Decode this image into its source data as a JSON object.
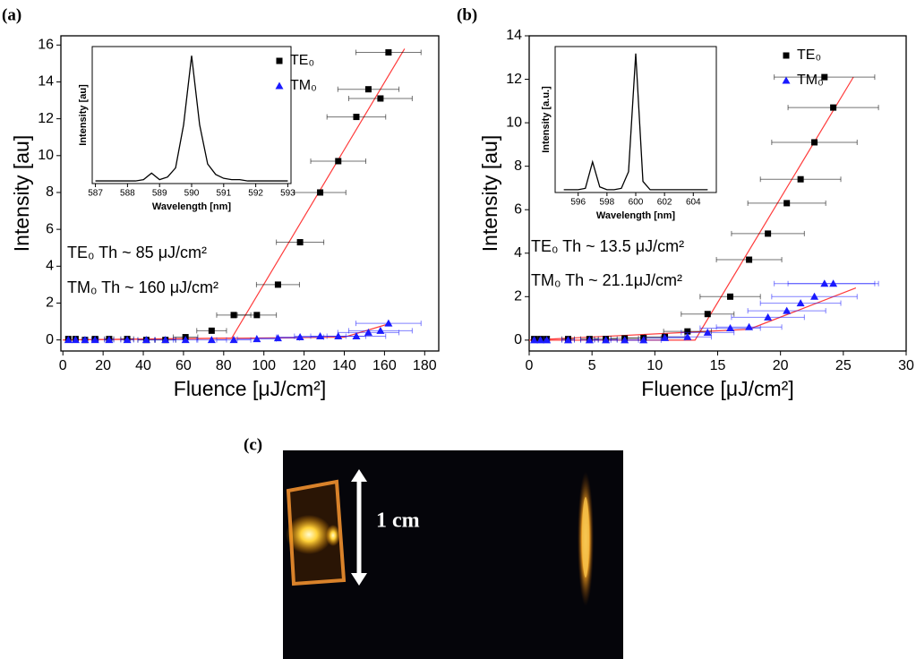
{
  "chart_data": [
    {
      "type": "scatter",
      "panel_label": "(a)",
      "xlabel": "Fluence [μJ/cm²]",
      "ylabel": "Intensity [au]",
      "xlim": [
        -1,
        187
      ],
      "ylim": [
        -0.6,
        16.5
      ],
      "xticks": [
        0,
        20,
        40,
        60,
        80,
        100,
        120,
        140,
        160,
        180
      ],
      "yticks": [
        0,
        2,
        4,
        6,
        8,
        10,
        12,
        14,
        16
      ],
      "legend": "upper right",
      "x": [
        2.7,
        6.3,
        11,
        16,
        23,
        32,
        41.5,
        51,
        61,
        74,
        85,
        96.5,
        107,
        118,
        128,
        137,
        146,
        152,
        158,
        162
      ],
      "series": [
        {
          "name": "TE₀",
          "color": "#000000",
          "marker": "square",
          "values": [
            0.05,
            0.05,
            0,
            0.05,
            0.05,
            0.05,
            0,
            0,
            0.15,
            0.5,
            1.35,
            1.35,
            3.0,
            5.3,
            8.0,
            9.7,
            12.1,
            13.6,
            13.1,
            15.6
          ],
          "xerr": [
            0.3,
            0.6,
            1.1,
            1.6,
            2.3,
            3.2,
            4.2,
            5.1,
            6.1,
            7.4,
            8.5,
            9.7,
            10.7,
            11.8,
            12.8,
            13.7,
            14.6,
            15.2,
            15.8,
            16.2
          ]
        },
        {
          "name": "TM₀",
          "color": "#1a1aff",
          "marker": "triangle",
          "values": [
            0,
            0,
            0,
            0,
            0,
            0,
            0,
            0,
            0,
            0,
            0,
            0.05,
            0.1,
            0.15,
            0.2,
            0.2,
            0.2,
            0.4,
            0.5,
            0.9
          ],
          "xerr": [
            0.3,
            0.6,
            1.1,
            1.6,
            2.3,
            3.2,
            4.2,
            5.1,
            6.1,
            7.4,
            8.5,
            9.7,
            10.7,
            11.8,
            12.8,
            13.7,
            14.6,
            15.2,
            15.8,
            16.2
          ]
        }
      ],
      "fits": [
        {
          "color": "#ff3b3b",
          "x": [
            0,
            84,
            170
          ],
          "y": [
            0,
            0.1,
            15.8
          ]
        },
        {
          "color": "#ff3b3b",
          "x": [
            0,
            140,
            163
          ],
          "y": [
            0,
            0.15,
            0.9
          ]
        }
      ],
      "annotations": [
        "TE₀ Th ~ 85 μJ/cm²",
        "TM₀ Th ~ 160 μJ/cm²"
      ],
      "inset": {
        "type": "line",
        "xlabel": "Wavelength [nm]",
        "ylabel": "Intensity [au]",
        "xlim": [
          586.9,
          593.1
        ],
        "ylim": [
          0,
          1.05
        ],
        "xticks": [
          587,
          588,
          589,
          590,
          591,
          592,
          593
        ],
        "color": "#000000",
        "x": [
          587,
          587.25,
          587.5,
          587.75,
          588,
          588.25,
          588.5,
          588.75,
          589,
          589.25,
          589.5,
          589.75,
          590,
          590.25,
          590.5,
          590.75,
          591,
          591.25,
          591.5,
          591.75,
          592,
          592.25,
          592.5,
          592.75,
          593
        ],
        "values": [
          0.02,
          0.02,
          0.02,
          0.02,
          0.02,
          0.02,
          0.03,
          0.08,
          0.03,
          0.05,
          0.12,
          0.45,
          0.98,
          0.45,
          0.15,
          0.07,
          0.04,
          0.03,
          0.03,
          0.02,
          0.02,
          0.02,
          0.02,
          0.02,
          0.02
        ]
      }
    },
    {
      "type": "scatter",
      "panel_label": "(b)",
      "xlabel": "Fluence [μJ/cm²]",
      "ylabel": "Intensity [au]",
      "xlim": [
        0,
        30
      ],
      "ylim": [
        -0.5,
        14
      ],
      "xticks": [
        0,
        5,
        10,
        15,
        20,
        25,
        30
      ],
      "yticks": [
        0,
        2,
        4,
        6,
        8,
        10,
        12,
        14
      ],
      "legend": "upper right",
      "x": [
        0.4,
        0.9,
        1.4,
        3.1,
        4.8,
        6.1,
        7.6,
        9.1,
        10.8,
        12.6,
        14.2,
        16.0,
        17.5,
        19.0,
        20.5,
        21.6,
        22.7,
        24.2,
        23.5
      ],
      "series": [
        {
          "name": "TE₀",
          "color": "#000000",
          "marker": "square",
          "values": [
            0.05,
            0.05,
            0.05,
            0.05,
            0.05,
            0.05,
            0.08,
            0.1,
            0.15,
            0.4,
            1.2,
            2.0,
            3.7,
            4.9,
            6.3,
            7.4,
            9.1,
            10.7,
            12.1
          ],
          "xerr": [
            0.1,
            0.1,
            0.2,
            0.5,
            0.7,
            0.9,
            1.1,
            1.4,
            1.6,
            1.9,
            2.1,
            2.4,
            2.6,
            2.9,
            3.1,
            3.2,
            3.4,
            3.6,
            4.0
          ]
        },
        {
          "name": "TM₀",
          "color": "#1a1aff",
          "marker": "triangle",
          "values": [
            0,
            0,
            0,
            0,
            0,
            0,
            0,
            0,
            0.1,
            0.15,
            0.35,
            0.55,
            0.6,
            1.05,
            1.35,
            1.7,
            2.0,
            2.6,
            2.6
          ],
          "xerr": [
            0.1,
            0.1,
            0.2,
            0.5,
            0.7,
            0.9,
            1.1,
            1.4,
            1.6,
            1.9,
            2.1,
            2.4,
            2.6,
            2.9,
            3.1,
            3.2,
            3.4,
            3.6,
            4.0
          ]
        }
      ],
      "fits": [
        {
          "color": "#ff3b3b",
          "x": [
            0,
            13.2,
            25.8
          ],
          "y": [
            0,
            0,
            12.1
          ]
        },
        {
          "color": "#ff3b3b",
          "x": [
            0,
            17.5,
            26
          ],
          "y": [
            0,
            0.5,
            2.4
          ]
        }
      ],
      "annotations": [
        "TE₀ Th ~ 13.5 μJ/cm²",
        "TM₀ Th ~  21.1μJ/cm²"
      ],
      "inset": {
        "type": "line",
        "xlabel": "Wavelength [nm]",
        "ylabel": "Intensity [a.u.]",
        "xlim": [
          594.4,
          605.6
        ],
        "ylim": [
          0,
          1.05
        ],
        "xticks": [
          596,
          598,
          600,
          602,
          604
        ],
        "color": "#000000",
        "x": [
          595,
          595.5,
          596,
          596.5,
          597,
          597.5,
          598,
          598.5,
          599,
          599.5,
          600,
          600.5,
          601,
          601.5,
          602,
          602.5,
          603,
          603.5,
          604,
          604.5,
          605
        ],
        "values": [
          0.02,
          0.02,
          0.02,
          0.03,
          0.22,
          0.04,
          0.02,
          0.02,
          0.03,
          0.15,
          1.0,
          0.08,
          0.02,
          0.02,
          0.02,
          0.02,
          0.02,
          0.02,
          0.02,
          0.02,
          0.02
        ]
      }
    }
  ],
  "photo": {
    "panel_label": "(c)",
    "scale_label": "1 cm"
  }
}
